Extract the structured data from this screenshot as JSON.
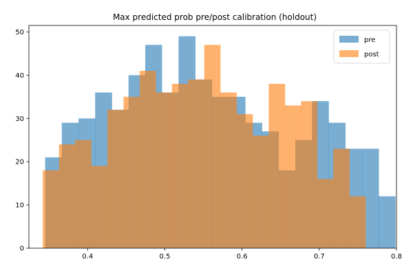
{
  "chart_data": {
    "type": "bar",
    "title": "Max predicted prob pre/post calibration (holdout)",
    "xlabel": "",
    "ylabel": "",
    "xlim": [
      0.324,
      0.8
    ],
    "ylim": [
      0,
      51.5
    ],
    "xticks": [
      {
        "value": 0.4,
        "label": "0.4"
      },
      {
        "value": 0.5,
        "label": "0.5"
      },
      {
        "value": 0.6,
        "label": "0.6"
      },
      {
        "value": 0.7,
        "label": "0.7"
      },
      {
        "value": 0.8,
        "label": "0.8"
      }
    ],
    "yticks": [
      {
        "value": 0,
        "label": "0"
      },
      {
        "value": 10,
        "label": "10"
      },
      {
        "value": 20,
        "label": "20"
      },
      {
        "value": 30,
        "label": "30"
      },
      {
        "value": 40,
        "label": "40"
      },
      {
        "value": 50,
        "label": "50"
      }
    ],
    "grid": false,
    "legend_position": "top-right",
    "series": [
      {
        "name": "pre",
        "color": "#1f77b4",
        "bin_start": 0.345,
        "bin_width": 0.0216,
        "values": [
          21,
          29,
          30,
          36,
          32,
          40,
          47,
          36,
          49,
          39,
          35,
          35,
          29,
          27,
          18,
          25,
          34,
          29,
          23,
          23,
          12
        ]
      },
      {
        "name": "post",
        "color": "#ff7f0e",
        "bin_start": 0.342,
        "bin_width": 0.0209,
        "values": [
          18,
          24,
          25,
          19,
          32,
          35,
          41,
          36,
          38,
          39,
          47,
          36,
          31,
          26,
          38,
          33,
          34,
          16,
          23,
          12
        ]
      }
    ]
  }
}
